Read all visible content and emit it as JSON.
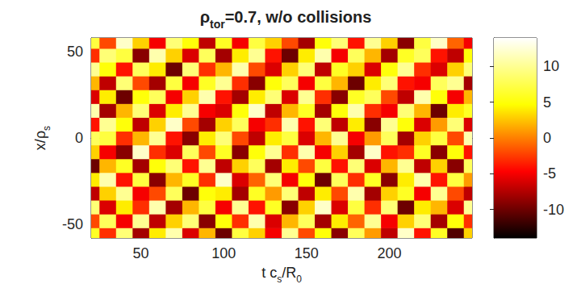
{
  "chart_data": {
    "type": "heatmap",
    "title": [
      {
        "text": "ρ"
      },
      {
        "sub": "tor"
      },
      {
        "text": "=0.7, w/o collisions"
      }
    ],
    "xlabel": [
      {
        "text": "t c"
      },
      {
        "sub": "s"
      },
      {
        "text": "/R"
      },
      {
        "sub": "0"
      }
    ],
    "ylabel": [
      {
        "text": "x/ρ"
      },
      {
        "sub": "s"
      }
    ],
    "x": [
      20,
      30,
      40,
      50,
      60,
      70,
      80,
      90,
      100,
      110,
      120,
      130,
      140,
      150,
      160,
      170,
      180,
      190,
      200,
      210,
      220,
      230,
      240,
      250
    ],
    "y": [
      -56,
      -48,
      -40,
      -32,
      -24,
      -16,
      -8,
      0,
      8,
      16,
      24,
      32,
      40,
      48,
      56
    ],
    "values": [
      [
        6,
        -3,
        9,
        -8,
        4,
        11,
        -6,
        2,
        -10,
        7,
        3,
        -5,
        10,
        -2,
        5,
        -9,
        8,
        1,
        -7,
        12,
        -4,
        6,
        -11,
        3
      ],
      [
        -2,
        8,
        -5,
        10,
        -7,
        3,
        9,
        -9,
        5,
        -3,
        11,
        -6,
        2,
        8,
        -8,
        4,
        -1,
        10,
        -5,
        3,
        9,
        -8,
        5,
        -3
      ],
      [
        9,
        -6,
        4,
        -3,
        11,
        -8,
        2,
        7,
        -5,
        10,
        -4,
        6,
        -9,
        3,
        12,
        -6,
        7,
        -3,
        9,
        -10,
        4,
        2,
        -6,
        10
      ],
      [
        -7,
        3,
        10,
        -5,
        -2,
        8,
        -10,
        5,
        4,
        -8,
        6,
        1,
        9,
        -7,
        4,
        -2,
        11,
        -8,
        3,
        6,
        -5,
        10,
        -2,
        -7
      ],
      [
        4,
        11,
        -4,
        7,
        -9,
        2,
        6,
        -3,
        12,
        -6,
        -1,
        9,
        -5,
        5,
        -10,
        8,
        -3,
        6,
        -9,
        4,
        11,
        -4,
        7,
        1
      ],
      [
        -10,
        2,
        6,
        -8,
        5,
        9,
        -4,
        10,
        -7,
        3,
        8,
        -8,
        4,
        -2,
        7,
        -4,
        9,
        -6,
        2,
        10,
        -7,
        3,
        -9,
        8
      ],
      [
        3,
        -5,
        -9,
        12,
        -3,
        -6,
        8,
        -2,
        6,
        -9,
        5,
        10,
        -3,
        11,
        -5,
        3,
        -8,
        12,
        -4,
        -3,
        6,
        -9,
        5,
        -4
      ],
      [
        8,
        7,
        -3,
        2,
        10,
        -4,
        -9,
        4,
        9,
        -2,
        -7,
        4,
        7,
        -6,
        2,
        10,
        -5,
        1,
        8,
        -8,
        3,
        7,
        -2,
        11
      ],
      [
        -4,
        10,
        5,
        -7,
        3,
        12,
        -2,
        -8,
        3,
        8,
        -5,
        -3,
        11,
        -4,
        9,
        -7,
        4,
        -9,
        10,
        5,
        -6,
        1,
        9,
        -6
      ],
      [
        11,
        -8,
        2,
        9,
        -6,
        4,
        10,
        -5,
        -6,
        5,
        12,
        -7,
        2,
        6,
        -8,
        5,
        11,
        -3,
        -5,
        9,
        2,
        -10,
        4,
        6
      ],
      [
        -6,
        4,
        -10,
        5,
        8,
        -5,
        3,
        11,
        -4,
        -8,
        4,
        9,
        -6,
        10,
        -3,
        -9,
        6,
        8,
        -2,
        -7,
        11,
        5,
        -5,
        2
      ],
      [
        2,
        -7,
        9,
        -2,
        -8,
        7,
        -5,
        6,
        10,
        -3,
        -9,
        5,
        8,
        -5,
        7,
        2,
        -10,
        4,
        9,
        -4,
        -5,
        8,
        10,
        -8
      ],
      [
        10,
        5,
        -4,
        8,
        4,
        -10,
        9,
        -3,
        2,
        11,
        -2,
        -6,
        3,
        9,
        -7,
        6,
        3,
        -6,
        5,
        10,
        -3,
        -6,
        3,
        9
      ],
      [
        -3,
        9,
        7,
        -9,
        11,
        3,
        -6,
        8,
        -8,
        4,
        10,
        -4,
        -10,
        4,
        11,
        -5,
        8,
        2,
        -8,
        6,
        8,
        -4,
        -7,
        5
      ],
      [
        7,
        -2,
        12,
        3,
        -5,
        9,
        5,
        -7,
        6,
        -5,
        7,
        3,
        -2,
        -8,
        5,
        9,
        -4,
        10,
        3,
        -9,
        7,
        12,
        -1,
        -5
      ]
    ],
    "xlim": [
      20,
      250
    ],
    "xticks": [
      50,
      100,
      150,
      200
    ],
    "ylim": [
      -58,
      58
    ],
    "yticks": [
      -50,
      0,
      50
    ],
    "colorbar": {
      "range": [
        -14,
        14
      ],
      "ticks": [
        -10,
        -5,
        0,
        5,
        10
      ],
      "colors": [
        "#000000",
        "#ff0000",
        "#ffff00",
        "#ffffff"
      ]
    },
    "grid": false
  }
}
